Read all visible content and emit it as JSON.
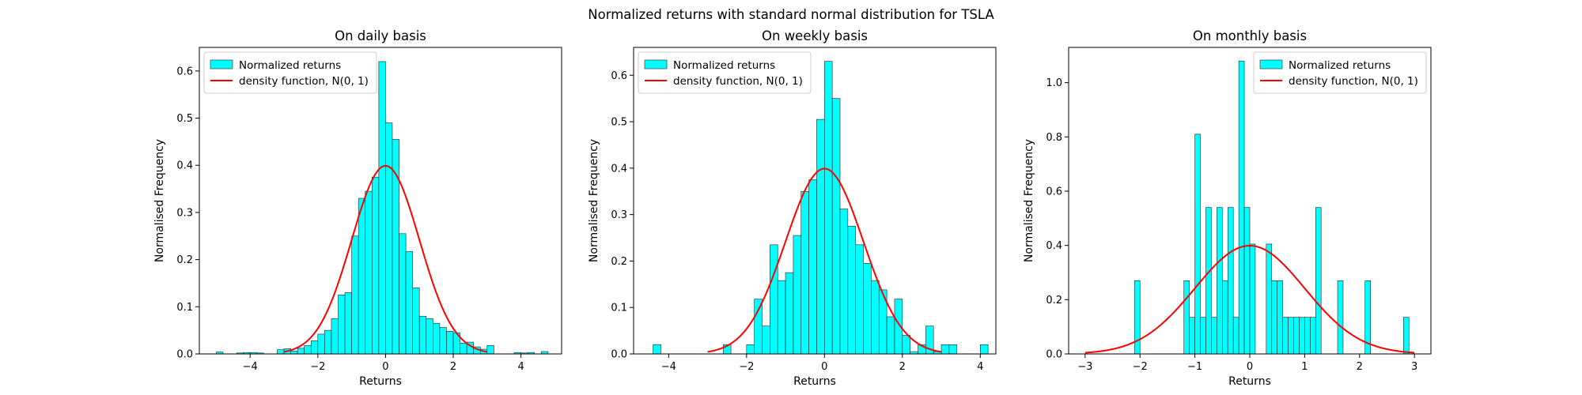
{
  "suptitle": "Normalized returns with standard normal distribution for TSLA",
  "colors": {
    "bar_fill": "#00ffff",
    "bar_edge": "#222222",
    "curve": "#ff0000",
    "axis": "#000000"
  },
  "chart_data": [
    {
      "type": "bar",
      "title": "On daily basis",
      "xlabel": "Returns",
      "ylabel": "Normalised Frequency",
      "xlim": [
        -5.5,
        5.2
      ],
      "ylim": [
        0,
        0.65
      ],
      "xticks": [
        -4,
        -2,
        0,
        2,
        4
      ],
      "xtick_labels": [
        "−4",
        "−2",
        "0",
        "2",
        "4"
      ],
      "yticks": [
        0.0,
        0.1,
        0.2,
        0.3,
        0.4,
        0.5,
        0.6
      ],
      "ytick_labels": [
        "0.0",
        "0.1",
        "0.2",
        "0.3",
        "0.4",
        "0.5",
        "0.6"
      ],
      "legend_position": "upper-left",
      "bar_width": 0.2,
      "bars": [
        {
          "x": -5.0,
          "h": 0.004
        },
        {
          "x": -4.4,
          "h": 0.002
        },
        {
          "x": -4.2,
          "h": 0.003
        },
        {
          "x": -4.0,
          "h": 0.003
        },
        {
          "x": -3.8,
          "h": 0.002
        },
        {
          "x": -3.2,
          "h": 0.009
        },
        {
          "x": -3.0,
          "h": 0.011
        },
        {
          "x": -2.8,
          "h": 0.006
        },
        {
          "x": -2.6,
          "h": 0.012
        },
        {
          "x": -2.4,
          "h": 0.018
        },
        {
          "x": -2.2,
          "h": 0.028
        },
        {
          "x": -2.0,
          "h": 0.042
        },
        {
          "x": -1.8,
          "h": 0.05
        },
        {
          "x": -1.6,
          "h": 0.075
        },
        {
          "x": -1.4,
          "h": 0.125
        },
        {
          "x": -1.2,
          "h": 0.13
        },
        {
          "x": -1.0,
          "h": 0.25
        },
        {
          "x": -0.8,
          "h": 0.33
        },
        {
          "x": -0.6,
          "h": 0.345
        },
        {
          "x": -0.4,
          "h": 0.375
        },
        {
          "x": -0.2,
          "h": 0.62
        },
        {
          "x": 0.0,
          "h": 0.49
        },
        {
          "x": 0.2,
          "h": 0.455
        },
        {
          "x": 0.4,
          "h": 0.255
        },
        {
          "x": 0.6,
          "h": 0.217
        },
        {
          "x": 0.8,
          "h": 0.14
        },
        {
          "x": 1.0,
          "h": 0.08
        },
        {
          "x": 1.2,
          "h": 0.075
        },
        {
          "x": 1.4,
          "h": 0.065
        },
        {
          "x": 1.6,
          "h": 0.056
        },
        {
          "x": 1.8,
          "h": 0.048
        },
        {
          "x": 2.0,
          "h": 0.045
        },
        {
          "x": 2.2,
          "h": 0.023
        },
        {
          "x": 2.4,
          "h": 0.025
        },
        {
          "x": 2.6,
          "h": 0.015
        },
        {
          "x": 2.8,
          "h": 0.01
        },
        {
          "x": 3.0,
          "h": 0.018
        },
        {
          "x": 3.8,
          "h": 0.003
        },
        {
          "x": 4.0,
          "h": 0.002
        },
        {
          "x": 4.2,
          "h": 0.003
        },
        {
          "x": 4.6,
          "h": 0.005
        }
      ],
      "curve": {
        "x_range": [
          -3,
          3
        ],
        "label": "density function, N(0, 1)"
      },
      "legend": [
        {
          "kind": "patch",
          "label": "Normalized returns"
        },
        {
          "kind": "line",
          "label": "density function, N(0, 1)"
        }
      ]
    },
    {
      "type": "bar",
      "title": "On weekly basis",
      "xlabel": "Returns",
      "ylabel": "Normalised Frequency",
      "xlim": [
        -4.9,
        4.4
      ],
      "ylim": [
        0,
        0.66
      ],
      "xticks": [
        -4,
        -2,
        0,
        2,
        4
      ],
      "xtick_labels": [
        "−4",
        "−2",
        "0",
        "2",
        "4"
      ],
      "yticks": [
        0.0,
        0.1,
        0.2,
        0.3,
        0.4,
        0.5,
        0.6
      ],
      "ytick_labels": [
        "0.0",
        "0.1",
        "0.2",
        "0.3",
        "0.4",
        "0.5",
        "0.6"
      ],
      "legend_position": "upper-left",
      "bar_width": 0.2,
      "bars": [
        {
          "x": -4.4,
          "h": 0.02
        },
        {
          "x": -2.6,
          "h": 0.02
        },
        {
          "x": -2.0,
          "h": 0.02
        },
        {
          "x": -1.8,
          "h": 0.118
        },
        {
          "x": -1.6,
          "h": 0.06
        },
        {
          "x": -1.4,
          "h": 0.235
        },
        {
          "x": -1.2,
          "h": 0.158
        },
        {
          "x": -1.0,
          "h": 0.175
        },
        {
          "x": -0.8,
          "h": 0.255
        },
        {
          "x": -0.6,
          "h": 0.35
        },
        {
          "x": -0.4,
          "h": 0.375
        },
        {
          "x": -0.2,
          "h": 0.505
        },
        {
          "x": 0.0,
          "h": 0.63
        },
        {
          "x": 0.2,
          "h": 0.55
        },
        {
          "x": 0.4,
          "h": 0.312
        },
        {
          "x": 0.6,
          "h": 0.275
        },
        {
          "x": 0.8,
          "h": 0.235
        },
        {
          "x": 1.0,
          "h": 0.195
        },
        {
          "x": 1.2,
          "h": 0.158
        },
        {
          "x": 1.4,
          "h": 0.138
        },
        {
          "x": 1.6,
          "h": 0.08
        },
        {
          "x": 1.8,
          "h": 0.118
        },
        {
          "x": 2.0,
          "h": 0.04
        },
        {
          "x": 2.2,
          "h": 0.005
        },
        {
          "x": 2.4,
          "h": 0.02
        },
        {
          "x": 2.6,
          "h": 0.06
        },
        {
          "x": 2.8,
          "h": 0.005
        },
        {
          "x": 3.0,
          "h": 0.02
        },
        {
          "x": 3.2,
          "h": 0.02
        },
        {
          "x": 4.0,
          "h": 0.02
        }
      ],
      "curve": {
        "x_range": [
          -3,
          3
        ],
        "label": "density function, N(0, 1)"
      },
      "legend": [
        {
          "kind": "patch",
          "label": "Normalized returns"
        },
        {
          "kind": "line",
          "label": "density function, N(0, 1)"
        }
      ]
    },
    {
      "type": "bar",
      "title": "On monthly basis",
      "xlabel": "Returns",
      "ylabel": "Normalised Frequency",
      "xlim": [
        -3.3,
        3.3
      ],
      "ylim": [
        0,
        1.13
      ],
      "xticks": [
        -3,
        -2,
        -1,
        0,
        1,
        2,
        3
      ],
      "xtick_labels": [
        "−3",
        "−2",
        "−1",
        "0",
        "1",
        "2",
        "3"
      ],
      "yticks": [
        0.0,
        0.2,
        0.4,
        0.6,
        0.8,
        1.0
      ],
      "ytick_labels": [
        "0.0",
        "0.2",
        "0.4",
        "0.6",
        "0.8",
        "1.0"
      ],
      "legend_position": "upper-right",
      "bar_width": 0.1,
      "bars": [
        {
          "x": -2.1,
          "h": 0.27
        },
        {
          "x": -1.2,
          "h": 0.27
        },
        {
          "x": -1.1,
          "h": 0.135
        },
        {
          "x": -1.0,
          "h": 0.81
        },
        {
          "x": -0.9,
          "h": 0.135
        },
        {
          "x": -0.8,
          "h": 0.54
        },
        {
          "x": -0.7,
          "h": 0.135
        },
        {
          "x": -0.6,
          "h": 0.54
        },
        {
          "x": -0.5,
          "h": 0.27
        },
        {
          "x": -0.4,
          "h": 0.54
        },
        {
          "x": -0.3,
          "h": 0.135
        },
        {
          "x": -0.2,
          "h": 1.08
        },
        {
          "x": -0.1,
          "h": 0.54
        },
        {
          "x": 0.0,
          "h": 0.405
        },
        {
          "x": 0.3,
          "h": 0.405
        },
        {
          "x": 0.4,
          "h": 0.27
        },
        {
          "x": 0.5,
          "h": 0.27
        },
        {
          "x": 0.6,
          "h": 0.135
        },
        {
          "x": 0.7,
          "h": 0.135
        },
        {
          "x": 0.8,
          "h": 0.135
        },
        {
          "x": 0.9,
          "h": 0.135
        },
        {
          "x": 1.0,
          "h": 0.135
        },
        {
          "x": 1.1,
          "h": 0.135
        },
        {
          "x": 1.2,
          "h": 0.54
        },
        {
          "x": 1.6,
          "h": 0.27
        },
        {
          "x": 2.1,
          "h": 0.27
        },
        {
          "x": 2.8,
          "h": 0.135
        }
      ],
      "curve": {
        "x_range": [
          -3,
          3
        ],
        "label": "density function, N(0, 1)"
      },
      "legend": [
        {
          "kind": "patch",
          "label": "Normalized returns"
        },
        {
          "kind": "line",
          "label": "density function, N(0, 1)"
        }
      ]
    }
  ]
}
